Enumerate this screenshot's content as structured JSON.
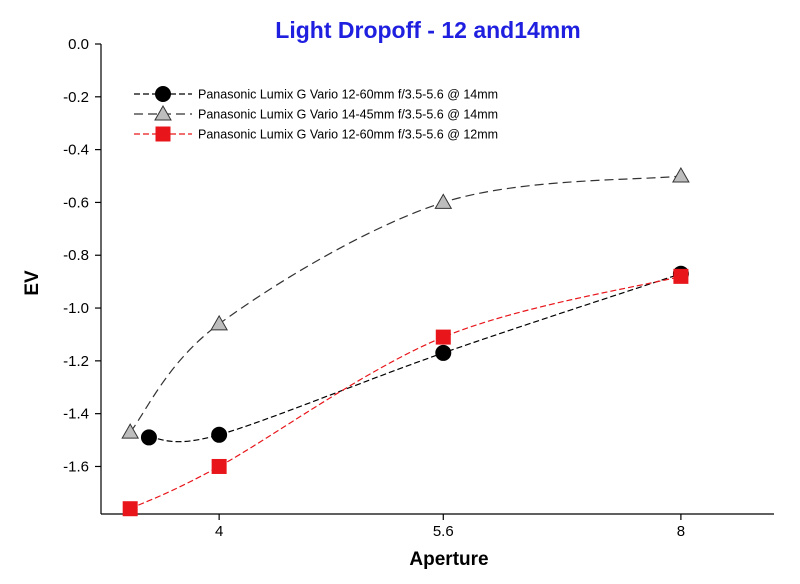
{
  "chart_data": {
    "type": "line",
    "title": "Light Dropoff - 12 and14mm",
    "title_color": "#1f1fe0",
    "xlabel": "Aperture",
    "ylabel": "EV",
    "xscale": "log",
    "xlim": [
      3.35,
      9.2
    ],
    "ylim": [
      -1.78,
      0.0
    ],
    "x_ticks": [
      4,
      5.6,
      8
    ],
    "x_tick_labels": [
      "4",
      "5.6",
      "8"
    ],
    "y_ticks": [
      0.0,
      -0.2,
      -0.4,
      -0.6,
      -0.8,
      -1.0,
      -1.2,
      -1.4,
      -1.6
    ],
    "y_tick_labels": [
      "0.0",
      "-0.2",
      "-0.4",
      "-0.6",
      "-0.8",
      "-1.0",
      "-1.2",
      "-1.4",
      "-1.6"
    ],
    "grid": false,
    "legend_position": "top-left",
    "series": [
      {
        "name": "Panasonic Lumix G Vario 12-60mm f/3.5-5.6 @ 14mm",
        "x": [
          3.6,
          4,
          5.6,
          8
        ],
        "y": [
          -1.49,
          -1.48,
          -1.17,
          -0.87
        ],
        "marker": "circle",
        "color": "#000000",
        "fill": "#000000",
        "line_style": "dash"
      },
      {
        "name": "Panasonic Lumix G Vario 14-45mm f/3.5-5.6 @ 14mm",
        "x": [
          3.5,
          4,
          5.6,
          8
        ],
        "y": [
          -1.47,
          -1.06,
          -0.6,
          -0.5
        ],
        "marker": "triangle",
        "color": "#333333",
        "fill": "#bdbdbd",
        "line_style": "long-dash"
      },
      {
        "name": "Panasonic Lumix G Vario 12-60mm f/3.5-5.6 @ 12mm",
        "x": [
          3.5,
          4,
          5.6,
          8
        ],
        "y": [
          -1.76,
          -1.6,
          -1.11,
          -0.88
        ],
        "marker": "square",
        "color": "#e8161b",
        "fill": "#e8161b",
        "line_style": "dash"
      }
    ]
  }
}
